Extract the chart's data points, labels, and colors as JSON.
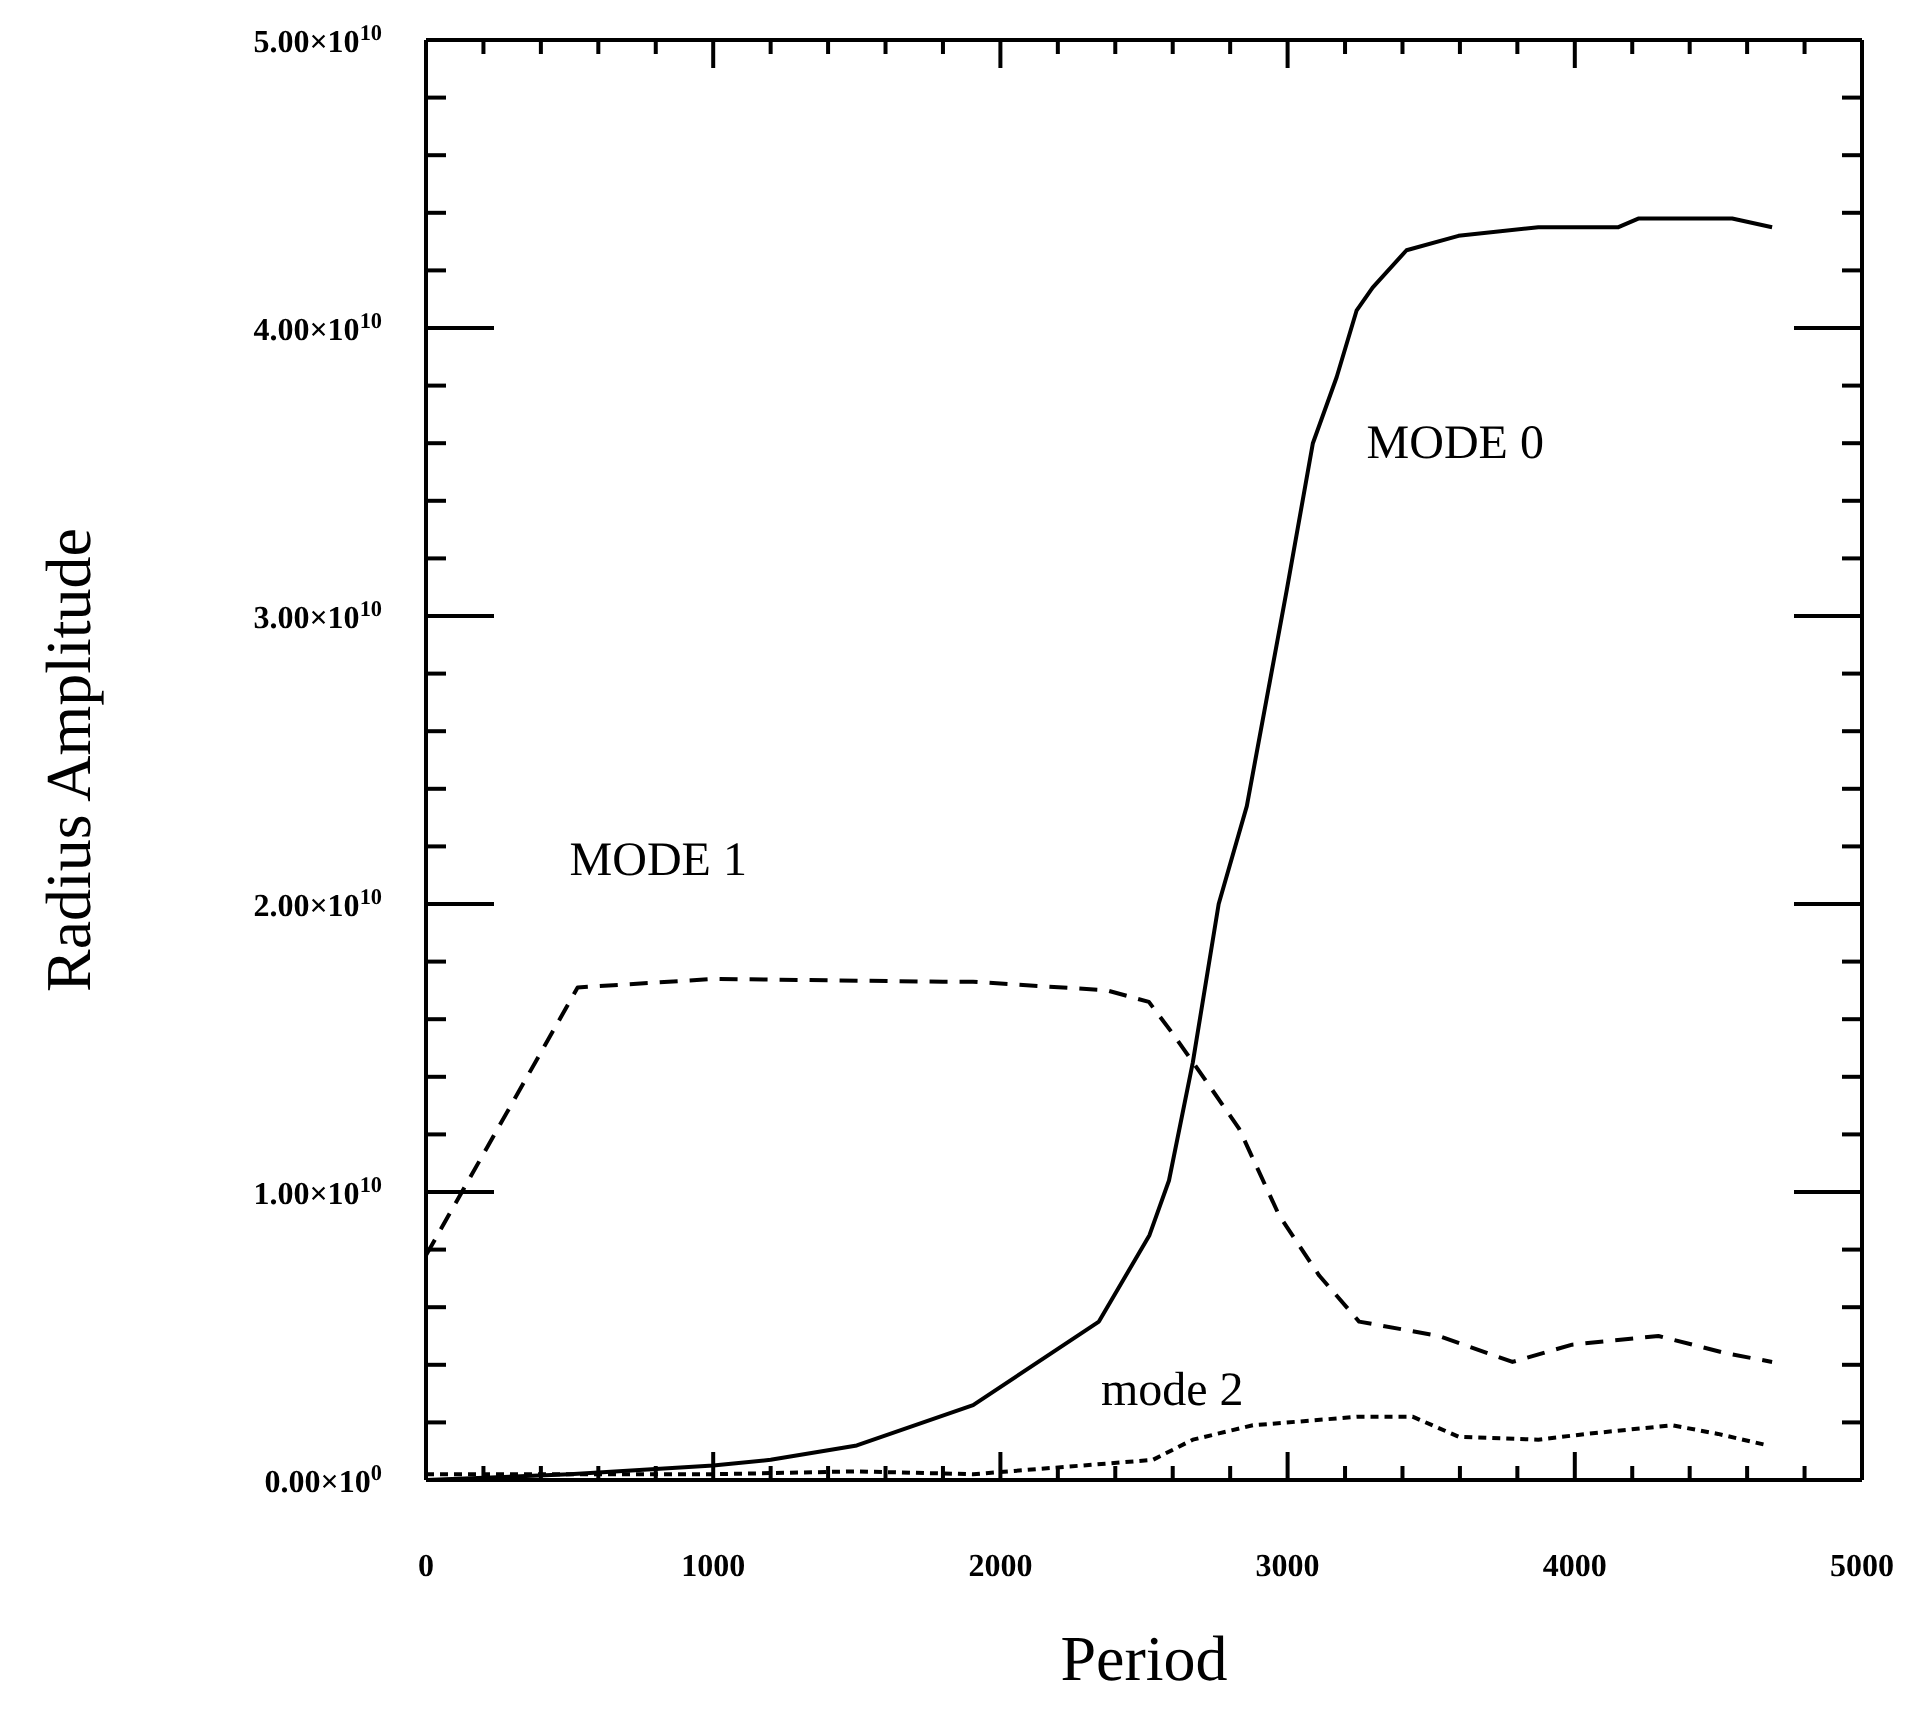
{
  "chart_data": {
    "type": "line",
    "xlabel": "Period",
    "ylabel": "Radius Amplitude",
    "xlim": [
      0,
      5000
    ],
    "xticks": [
      0,
      {
        "value": 200,
        "label": null
      },
      {
        "value": 400,
        "label": null
      },
      {
        "value": 600,
        "label": null
      },
      {
        "value": 800,
        "label": null
      },
      1000,
      {
        "value": 1200,
        "label": null
      },
      {
        "value": 1400,
        "label": null
      },
      {
        "value": 1600,
        "label": null
      },
      {
        "value": 1800,
        "label": null
      },
      2000,
      {
        "value": 2200,
        "label": null
      },
      {
        "value": 2400,
        "label": null
      },
      {
        "value": 2600,
        "label": null
      },
      {
        "value": 2800,
        "label": null
      },
      3000,
      {
        "value": 3200,
        "label": null
      },
      {
        "value": 3400,
        "label": null
      },
      {
        "value": 3600,
        "label": null
      },
      {
        "value": 3800,
        "label": null
      },
      4000,
      {
        "value": 4200,
        "label": null
      },
      {
        "value": 4400,
        "label": null
      },
      {
        "value": 4600,
        "label": null
      },
      {
        "value": 4800,
        "label": null
      },
      5000
    ],
    "ylim": [
      0,
      50000000000
    ],
    "yticks": [
      {
        "value": 0,
        "label": "0.00×10$^{0}$"
      },
      {
        "value": 2000000000,
        "label": null
      },
      {
        "value": 4000000000,
        "label": null
      },
      {
        "value": 6000000000,
        "label": null
      },
      {
        "value": 8000000000,
        "label": null
      },
      {
        "value": 10000000000,
        "label": "1.00×10$^{10}$"
      },
      {
        "value": 12000000000,
        "label": null
      },
      {
        "value": 14000000000,
        "label": null
      },
      {
        "value": 16000000000,
        "label": null
      },
      {
        "value": 18000000000,
        "label": null
      },
      {
        "value": 20000000000,
        "label": "2.00×10$^{10}$"
      },
      {
        "value": 22000000000,
        "label": null
      },
      {
        "value": 24000000000,
        "label": null
      },
      {
        "value": 26000000000,
        "label": null
      },
      {
        "value": 28000000000,
        "label": null
      },
      {
        "value": 30000000000,
        "label": "3.00×10$^{10}$"
      },
      {
        "value": 32000000000,
        "label": null
      },
      {
        "value": 34000000000,
        "label": null
      },
      {
        "value": 36000000000,
        "label": null
      },
      {
        "value": 38000000000,
        "label": null
      },
      {
        "value": 40000000000,
        "label": "4.00×10$^{10}$"
      },
      {
        "value": 42000000000,
        "label": null
      },
      {
        "value": 44000000000,
        "label": null
      },
      {
        "value": 46000000000,
        "label": null
      },
      {
        "value": 48000000000,
        "label": null
      },
      {
        "value": 50000000000,
        "label": "5.00×10$^{10}$"
      }
    ],
    "marker": "none",
    "series": [
      {
        "name": "MODE 0",
        "color": "#000000",
        "line_style": "solid",
        "x": [
          0,
          500,
          1000,
          1200,
          1500,
          1905,
          2343,
          2519,
          2587,
          2670,
          2760,
          2858,
          2997,
          3088,
          3171,
          3240,
          3296,
          3414,
          3595,
          3873,
          4152,
          4221,
          4339,
          4548,
          4687
        ],
        "values": [
          0,
          200000000,
          500000000,
          700000000,
          1200000000,
          2600000000,
          5500000000,
          8500000000,
          10400000000,
          14500000000,
          20000000000,
          23400000000,
          30900000000,
          36000000000,
          38300000000,
          40600000000,
          41400000000,
          42700000000,
          43200000000,
          43500000000,
          43500000000,
          43800000000,
          43800000000,
          43800000000,
          43500000000
        ]
      },
      {
        "name": "MODE 1",
        "color": "#000000",
        "line_style": "dashed",
        "x": [
          0,
          528,
          1000,
          1800,
          1905,
          2371,
          2517,
          2600,
          2692,
          2831,
          2970,
          3110,
          3249,
          3527,
          3783,
          3991,
          4291,
          4527,
          4687
        ],
        "values": [
          7800000000,
          17100000000,
          17400000000,
          17300000000,
          17300000000,
          17000000000,
          16600000000,
          15500000000,
          14200000000,
          12200000000,
          9200000000,
          7100000000,
          5500000000,
          5000000000,
          4100000000,
          4700000000,
          5000000000,
          4400000000,
          4100000000
        ]
      },
      {
        "name": "mode 2",
        "color": "#000000",
        "line_style": "dotted",
        "x": [
          0,
          1000,
          1500,
          1905,
          2531,
          2670,
          2879,
          3249,
          3435,
          3596,
          3873,
          4040,
          4339,
          4499,
          4673
        ],
        "values": [
          200000000,
          200000000,
          300000000,
          200000000,
          700000000,
          1400000000,
          1900000000,
          2200000000,
          2200000000,
          1500000000,
          1400000000,
          1600000000,
          1900000000,
          1600000000,
          1200000000
        ]
      }
    ]
  }
}
